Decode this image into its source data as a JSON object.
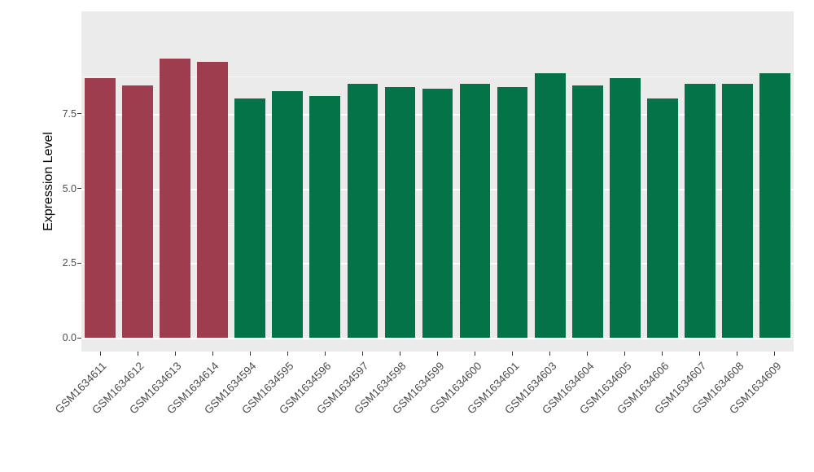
{
  "chart_data": {
    "type": "bar",
    "title": "",
    "xlabel": "",
    "ylabel": "Expression Level",
    "categories": [
      "GSM1634611",
      "GSM1634612",
      "GSM1634613",
      "GSM1634614",
      "GSM1634594",
      "GSM1634595",
      "GSM1634596",
      "GSM1634597",
      "GSM1634598",
      "GSM1634599",
      "GSM1634600",
      "GSM1634601",
      "GSM1634603",
      "GSM1634604",
      "GSM1634605",
      "GSM1634606",
      "GSM1634607",
      "GSM1634608",
      "GSM1634609"
    ],
    "values": [
      8.7,
      8.45,
      9.35,
      9.25,
      8.0,
      8.25,
      8.1,
      8.5,
      8.4,
      8.35,
      8.5,
      8.4,
      8.85,
      8.45,
      8.7,
      8.0,
      8.5,
      8.5,
      8.85
    ],
    "groups": [
      "group1",
      "group1",
      "group1",
      "group1",
      "group2",
      "group2",
      "group2",
      "group2",
      "group2",
      "group2",
      "group2",
      "group2",
      "group2",
      "group2",
      "group2",
      "group2",
      "group2",
      "group2",
      "group2"
    ],
    "group_colors": {
      "group1": "#9e3d4e",
      "group2": "#047347"
    },
    "ylim": [
      0,
      10.9
    ],
    "yticks": [
      0,
      2.5,
      5.0,
      7.5
    ],
    "ytick_labels": [
      "0.0",
      "2.5",
      "5.0",
      "7.5"
    ],
    "minor_gridlines": [
      1.25,
      3.75,
      6.25,
      8.75
    ],
    "grid": true,
    "legend": "none",
    "panel_background": "#ebebeb",
    "gridline_color": "#ffffff",
    "bar_width_fraction": 0.82
  }
}
